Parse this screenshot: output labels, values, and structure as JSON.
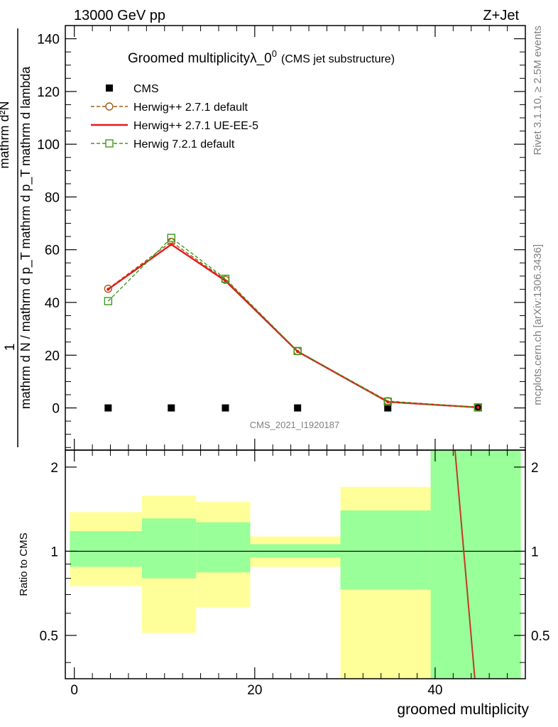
{
  "header": {
    "energy_label": "13000 GeV pp",
    "process_label": "Z+Jet",
    "title_main": "Groomed multiplicityλ_0",
    "title_superscript": "0",
    "title_note": "(CMS jet substructure)",
    "analysis_id": "CMS_2021_I1920187",
    "side_label_top": "Rivet 3.1.10, ≥ 2.5M events",
    "side_label_bottom": "mcplots.cern.ch [arXiv:1306.3436]"
  },
  "chart_data": [
    {
      "type": "line",
      "title": "Groomed multiplicityλ_0",
      "xlabel": "",
      "ylabel_line1": "1",
      "ylabel_denominator": "mathrm d N / mathrm d p_T mathrm d p_T mathrm d lambda",
      "ylabel_numerator": "mathrm d²N",
      "xlim": [
        -1,
        50
      ],
      "ylim": [
        -16,
        145
      ],
      "x_ticks": [
        0,
        20,
        40
      ],
      "y_ticks": [
        0,
        20,
        40,
        60,
        80,
        100,
        120,
        140
      ],
      "y_tick_labels": [
        "0",
        "20",
        "40",
        "60",
        "80",
        "100",
        "120",
        "140"
      ],
      "legend_position": "top-left",
      "grid": false,
      "series": [
        {
          "name": "CMS",
          "style": "marker-square",
          "color": "#000000",
          "x": [
            3.75,
            10.75,
            16.75,
            24.75,
            34.75,
            44.75
          ],
          "y": [
            0,
            0,
            0,
            0,
            0,
            0
          ]
        },
        {
          "name": "Herwig++ 2.7.1 default",
          "style": "dashed-circle",
          "color": "#a05a14",
          "x": [
            3.75,
            10.75,
            16.75,
            24.75,
            34.75,
            44.75
          ],
          "y": [
            45.2,
            63.0,
            48.6,
            21.5,
            2.6,
            0.2
          ]
        },
        {
          "name": "Herwig++ 2.7.1 UE-EE-5",
          "style": "solid",
          "color": "#e41a1c",
          "x": [
            3.75,
            10.75,
            16.75,
            24.75,
            34.75,
            44.75
          ],
          "y": [
            45.0,
            62.0,
            48.2,
            21.4,
            2.3,
            0.2
          ]
        },
        {
          "name": "Herwig 7.2.1 default",
          "style": "dashed-square",
          "color": "#3a9a1a",
          "x": [
            3.75,
            10.75,
            16.75,
            24.75,
            34.75,
            44.75
          ],
          "y": [
            40.5,
            64.5,
            49.0,
            21.6,
            2.4,
            0.2
          ]
        }
      ]
    },
    {
      "type": "line",
      "title": "",
      "xlabel": "groomed multiplicity",
      "ylabel": "Ratio to CMS",
      "xlim": [
        -1,
        50
      ],
      "ylim": [
        0.35,
        2.3
      ],
      "x_ticks": [
        0,
        20,
        40
      ],
      "x_tick_labels": [
        "0",
        "20",
        "40"
      ],
      "y_ticks": [
        0.5,
        1,
        2
      ],
      "y_tick_labels": [
        "0.5",
        "1",
        "2"
      ],
      "y_scale": "log",
      "reference_line": 1,
      "bands": {
        "bins": [
          [
            -0.5,
            7.5
          ],
          [
            7.5,
            13.5
          ],
          [
            13.5,
            19.5
          ],
          [
            19.5,
            29.5
          ],
          [
            29.5,
            39.5
          ],
          [
            39.5,
            49.5
          ]
        ],
        "inner_color": "#99ff99",
        "outer_color": "#ffff99",
        "inner": [
          [
            0.88,
            1.18
          ],
          [
            0.8,
            1.31
          ],
          [
            0.84,
            1.27
          ],
          [
            0.95,
            1.06
          ],
          [
            0.73,
            1.4
          ],
          [
            0.35,
            2.3
          ]
        ],
        "outer": [
          [
            0.75,
            1.38
          ],
          [
            0.51,
            1.58
          ],
          [
            0.63,
            1.5
          ],
          [
            0.88,
            1.13
          ],
          [
            0.35,
            1.7
          ],
          [
            0.35,
            2.3
          ]
        ]
      },
      "series": [
        {
          "name": "Herwig++ 2.7.1 UE-EE-5",
          "style": "solid",
          "color": "#c0392b",
          "x": [
            42.2,
            44.4
          ],
          "y": [
            2.3,
            0.35
          ]
        }
      ]
    }
  ]
}
